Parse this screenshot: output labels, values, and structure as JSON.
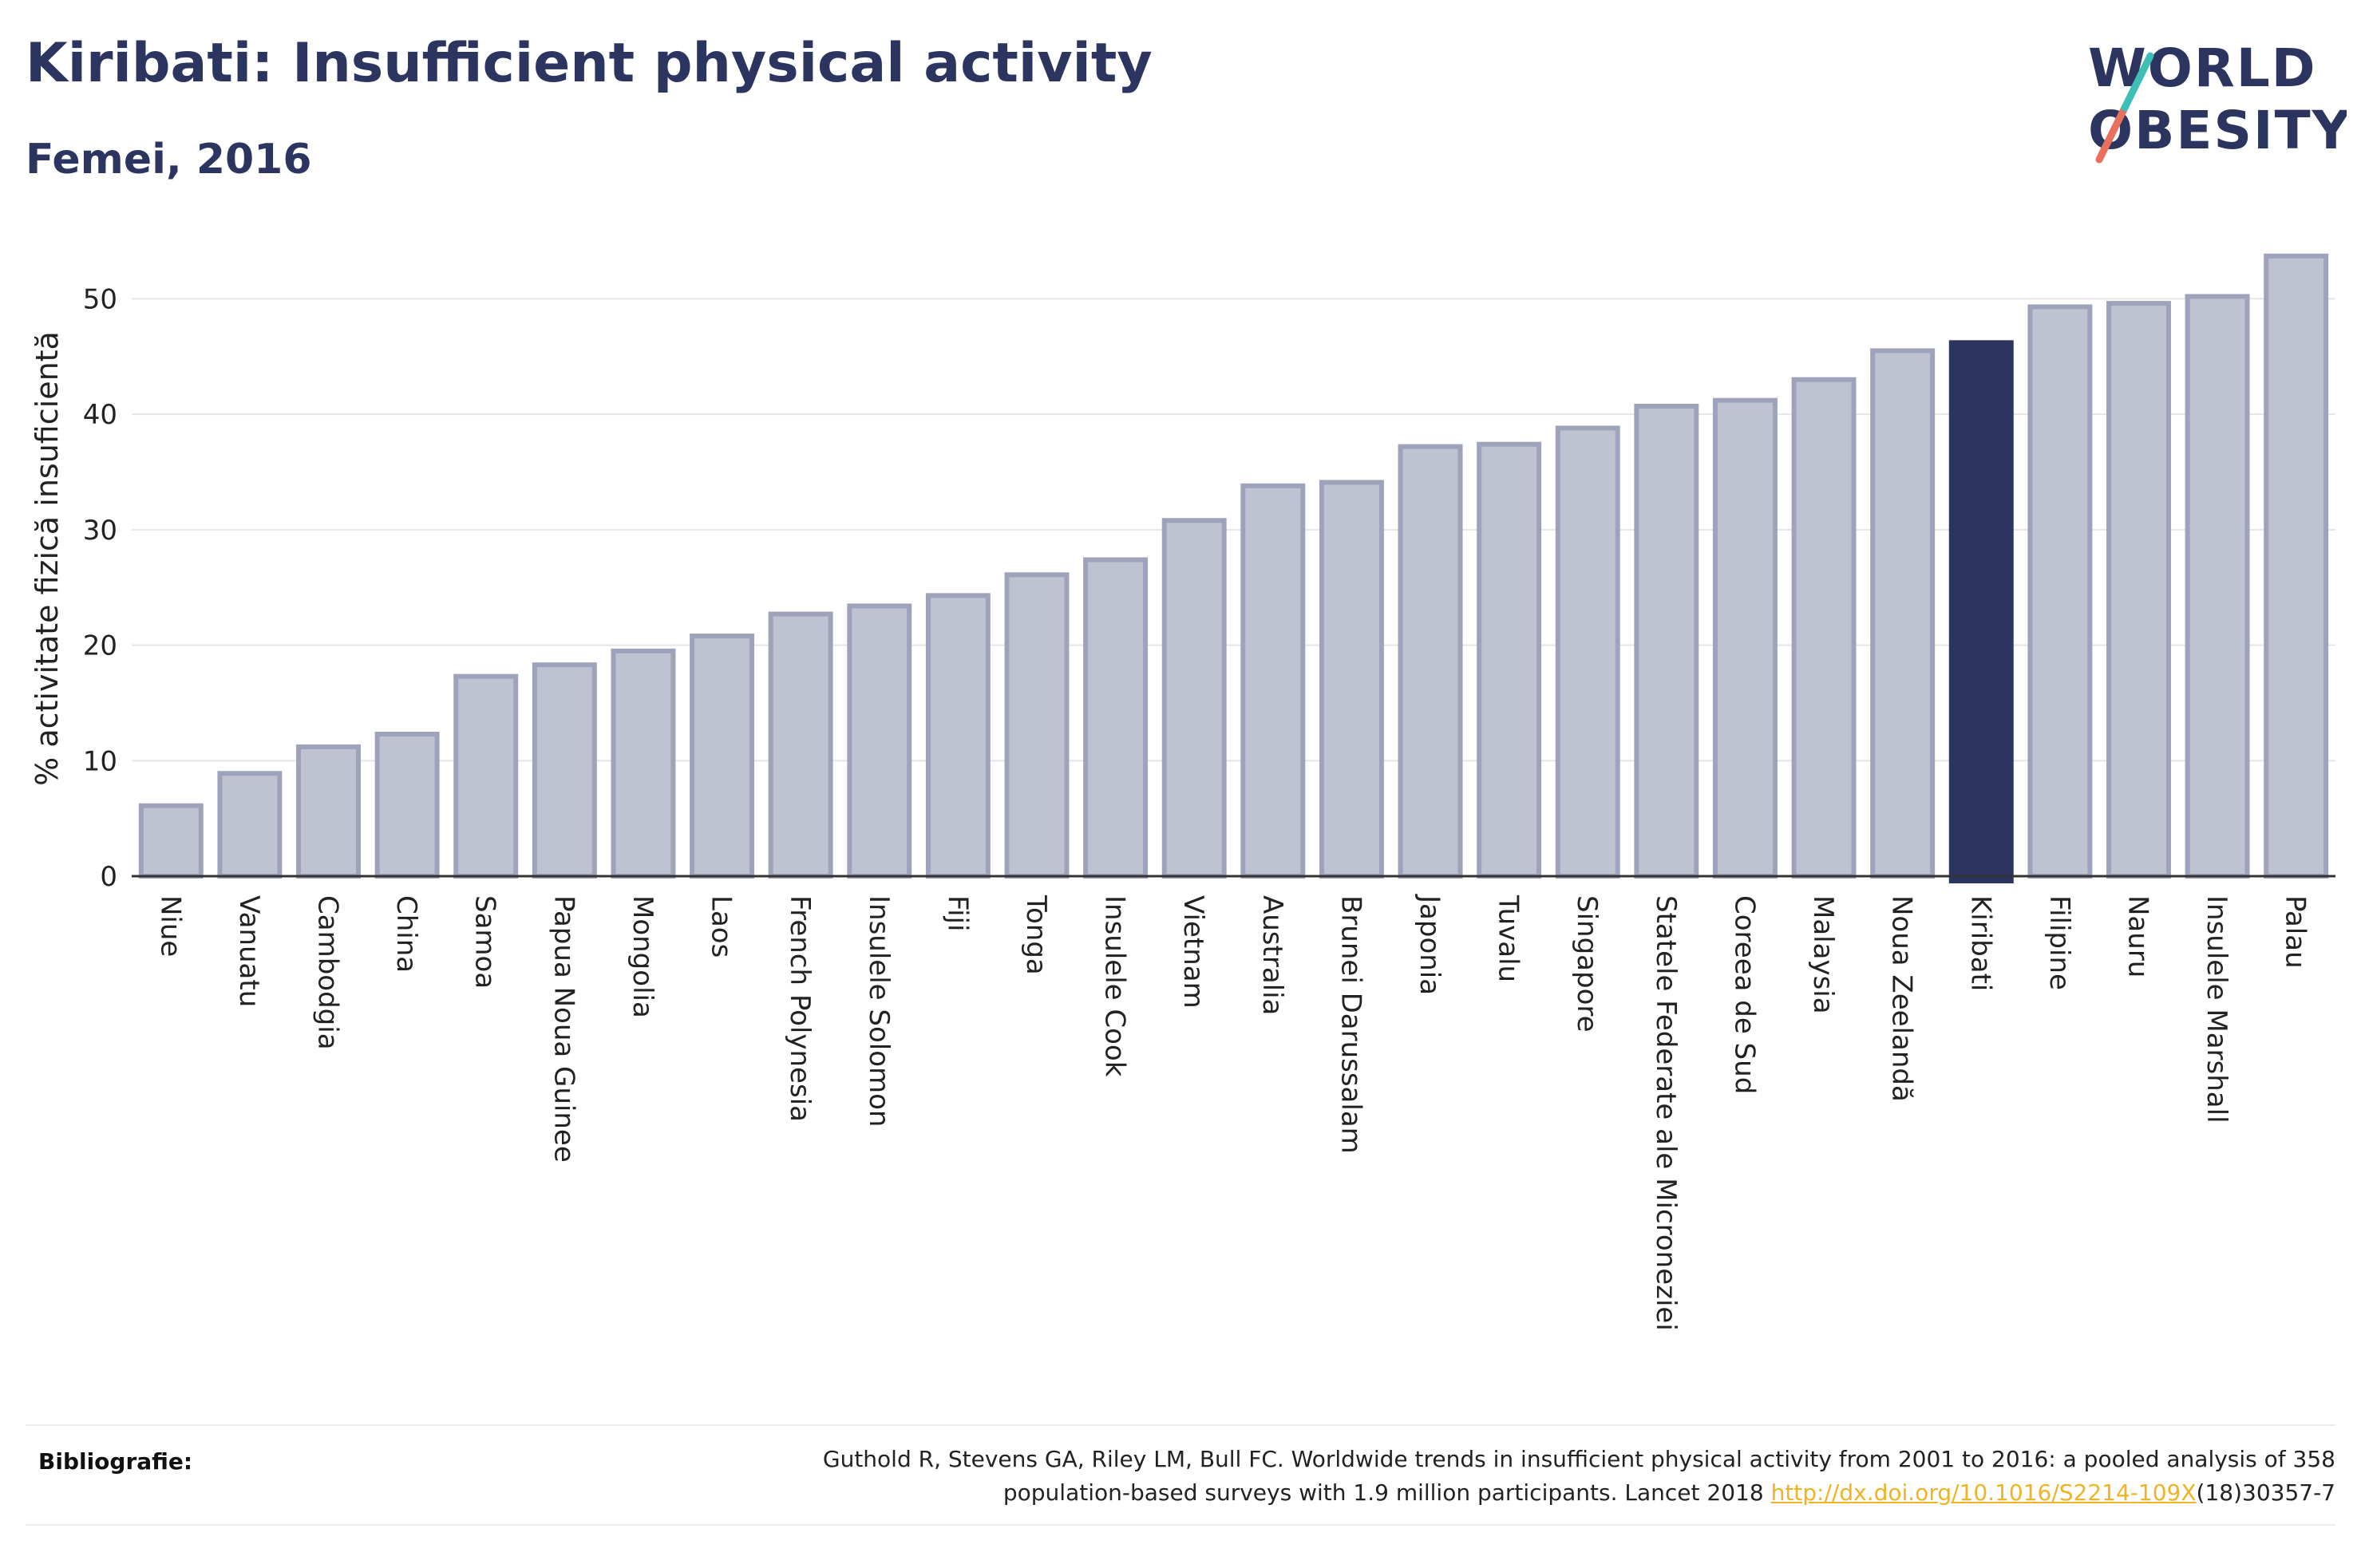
{
  "header": {
    "title": "Kiribati: Insufficient physical activity",
    "subtitle": "Femei, 2016"
  },
  "logo": {
    "line1": "WORLD",
    "line2": "OBESITY"
  },
  "colors": {
    "bar": "#bfc3d1",
    "bar_border": "#9ea3bb",
    "highlight": "#2b3560",
    "grid": "#e6e6e6",
    "accent_teal": "#3ebfb6",
    "accent_coral": "#e8705c"
  },
  "chart_data": {
    "type": "bar",
    "title": "Kiribati: Insufficient physical activity",
    "subtitle": "Femei, 2016",
    "xlabel": "",
    "ylabel": "% activitate fizică insuficientă",
    "ylim": [
      0,
      55
    ],
    "yticks": [
      0,
      10,
      20,
      30,
      40,
      50
    ],
    "grid": true,
    "highlight": "Kiribati",
    "categories": [
      "Niue",
      "Vanuatu",
      "Cambodgia",
      "China",
      "Samoa",
      "Papua Noua Guinee",
      "Mongolia",
      "Laos",
      "French Polynesia",
      "Insulele Solomon",
      "Fiji",
      "Tonga",
      "Insulele Cook",
      "Vietnam",
      "Australia",
      "Brunei Darussalam",
      "Japonia",
      "Tuvalu",
      "Singapore",
      "Statele Federate ale Microneziei",
      "Coreea de Sud",
      "Malaysia",
      "Noua Zeelandă",
      "Kiribati",
      "Filipine",
      "Nauru",
      "Insulele Marshall",
      "Palau"
    ],
    "values": [
      6.1,
      8.9,
      11.2,
      12.3,
      17.3,
      18.3,
      19.5,
      20.8,
      22.7,
      23.4,
      24.3,
      26.1,
      27.4,
      30.8,
      33.8,
      34.1,
      37.2,
      37.4,
      38.8,
      40.7,
      41.2,
      43.0,
      45.5,
      46.2,
      49.3,
      49.6,
      50.2,
      53.7
    ]
  },
  "footer": {
    "label": "Bibliografie:",
    "text_line1": "Guthold R, Stevens GA, Riley LM, Bull FC. Worldwide trends in insufficient physical activity from 2001 to 2016: a pooled analysis of 358",
    "text_line2_pre": "population-based surveys with 1.9 million participants. Lancet 2018 ",
    "link": "http://dx.doi.org/10.1016/S2214-109X",
    "text_line2_post": "(18)30357-7"
  }
}
